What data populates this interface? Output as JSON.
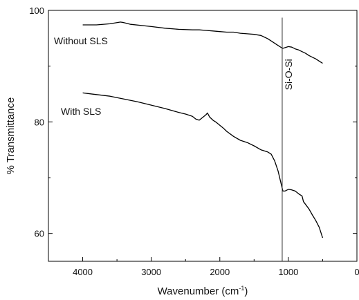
{
  "chart_data": {
    "type": "line",
    "title": "",
    "xlabel": "Wavenumber (cm",
    "xlabel_sup": "-1",
    "xlabel_close": ")",
    "ylabel": "% Transmittance",
    "xlim": [
      4500,
      0
    ],
    "ylim": [
      55,
      100
    ],
    "x_ticks": [
      4000,
      3000,
      2000,
      1000,
      0
    ],
    "x_tick_labels": [
      "4000",
      "3000",
      "2000",
      "1000",
      "0"
    ],
    "y_ticks": [
      60,
      80,
      100
    ],
    "y_tick_labels": [
      "60",
      "80",
      "100"
    ],
    "grid": false,
    "series": [
      {
        "name": "Without SLS",
        "color": "#000000",
        "x": [
          4000,
          3800,
          3600,
          3450,
          3400,
          3300,
          3000,
          2800,
          2600,
          2400,
          2300,
          2200,
          2100,
          2000,
          1900,
          1800,
          1700,
          1600,
          1500,
          1400,
          1300,
          1200,
          1150,
          1100,
          1080,
          1050,
          1000,
          950,
          900,
          850,
          800,
          750,
          700,
          650,
          600,
          550,
          500
        ],
        "y": [
          97.4,
          97.4,
          97.6,
          97.9,
          97.8,
          97.5,
          97.1,
          96.8,
          96.6,
          96.5,
          96.5,
          96.4,
          96.3,
          96.2,
          96.1,
          96.1,
          95.9,
          95.8,
          95.7,
          95.5,
          94.9,
          94.1,
          93.7,
          93.3,
          93.2,
          93.3,
          93.5,
          93.4,
          93.1,
          92.9,
          92.6,
          92.3,
          91.9,
          91.6,
          91.3,
          90.9,
          90.5
        ]
      },
      {
        "name": "With SLS",
        "color": "#000000",
        "x": [
          4000,
          3800,
          3600,
          3400,
          3200,
          3000,
          2800,
          2600,
          2500,
          2400,
          2350,
          2300,
          2250,
          2200,
          2180,
          2150,
          2100,
          2050,
          2000,
          1950,
          1900,
          1800,
          1700,
          1600,
          1500,
          1400,
          1300,
          1250,
          1200,
          1150,
          1100,
          1080,
          1050,
          1000,
          950,
          900,
          850,
          800,
          780,
          750,
          700,
          650,
          600,
          550,
          500
        ],
        "y": [
          85.2,
          84.9,
          84.6,
          84.1,
          83.6,
          83.0,
          82.4,
          81.7,
          81.4,
          81.0,
          80.5,
          80.3,
          80.8,
          81.3,
          81.6,
          80.9,
          80.3,
          79.9,
          79.4,
          78.9,
          78.3,
          77.4,
          76.7,
          76.3,
          75.7,
          75.0,
          74.6,
          74.2,
          73.0,
          71.2,
          68.6,
          67.6,
          67.6,
          67.9,
          67.8,
          67.6,
          67.1,
          66.7,
          65.7,
          65.2,
          64.4,
          63.3,
          62.3,
          61.1,
          59.2
        ]
      }
    ],
    "annotations": [
      {
        "type": "vline",
        "x": 1090,
        "y_from": 55,
        "y_to": 98.7,
        "text": "Si-O-Si"
      }
    ]
  }
}
